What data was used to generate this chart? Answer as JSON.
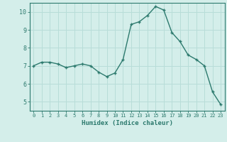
{
  "x": [
    0,
    1,
    2,
    3,
    4,
    5,
    6,
    7,
    8,
    9,
    10,
    11,
    12,
    13,
    14,
    15,
    16,
    17,
    18,
    19,
    20,
    21,
    22,
    23
  ],
  "y": [
    7.0,
    7.2,
    7.2,
    7.1,
    6.9,
    7.0,
    7.1,
    7.0,
    6.65,
    6.4,
    6.6,
    7.35,
    9.3,
    9.45,
    9.8,
    10.3,
    10.1,
    8.85,
    8.35,
    7.6,
    7.35,
    7.0,
    5.55,
    4.85
  ],
  "xlabel": "Humidex (Indice chaleur)",
  "line_color": "#2d7a6e",
  "marker_color": "#2d7a6e",
  "bg_color": "#d4eeea",
  "grid_color": "#b8ddd8",
  "axis_color": "#2d7a6e",
  "tick_color": "#2d7a6e",
  "label_color": "#2d7a6e",
  "xlim": [
    -0.5,
    23.5
  ],
  "ylim": [
    4.5,
    10.5
  ],
  "yticks": [
    5,
    6,
    7,
    8,
    9,
    10
  ],
  "xticks": [
    0,
    1,
    2,
    3,
    4,
    5,
    6,
    7,
    8,
    9,
    10,
    11,
    12,
    13,
    14,
    15,
    16,
    17,
    18,
    19,
    20,
    21,
    22,
    23
  ]
}
